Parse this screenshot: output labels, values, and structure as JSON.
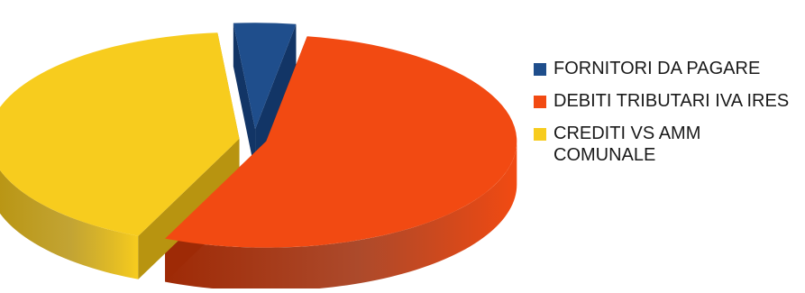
{
  "chart_data": {
    "type": "pie",
    "style": "3d-exploded",
    "title": "",
    "legend_position": "right",
    "slices": [
      {
        "label": "FORNITORI DA PAGARE",
        "value": 4,
        "color": "#1f4e8c",
        "side_color": "#123566"
      },
      {
        "label": "DEBITI TRIBUTARI IVA IRES",
        "value": 54,
        "color": "#f24a12",
        "side_color": "#9e2a06"
      },
      {
        "label": "CREDITI VS AMM COMUNALE",
        "value": 42,
        "color": "#f7cc1e",
        "side_color": "#b89410"
      }
    ]
  }
}
